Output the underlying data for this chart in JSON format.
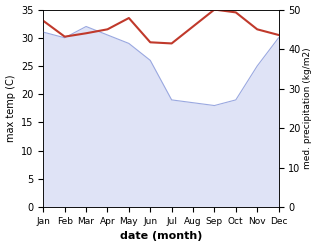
{
  "months": [
    "Jan",
    "Feb",
    "Mar",
    "Apr",
    "May",
    "Jun",
    "Jul",
    "Aug",
    "Sep",
    "Oct",
    "Nov",
    "Dec"
  ],
  "month_x": [
    0,
    1,
    2,
    3,
    4,
    5,
    6,
    7,
    8,
    9,
    10,
    11
  ],
  "temp_max": [
    33.0,
    30.2,
    30.8,
    31.5,
    33.5,
    29.2,
    29.0,
    32.0,
    35.0,
    34.5,
    31.5,
    30.5
  ],
  "precip": [
    31.0,
    30.0,
    32.0,
    30.5,
    29.0,
    26.0,
    19.0,
    18.5,
    18.0,
    19.0,
    25.0,
    30.0
  ],
  "temp_color": "#c0392b",
  "precip_fill_color": "#c5cdf0",
  "precip_line_color": "#9aa8e0",
  "temp_ylim": [
    0,
    35
  ],
  "precip_ylim": [
    0,
    50
  ],
  "left_yticks": [
    0,
    5,
    10,
    15,
    20,
    25,
    30,
    35
  ],
  "right_yticks": [
    0,
    10,
    20,
    30,
    40,
    50
  ],
  "xlabel": "date (month)",
  "ylabel_left": "max temp (C)",
  "ylabel_right": "med. precipitation (kg/m2)",
  "background_color": "#ffffff",
  "figsize": [
    3.18,
    2.47
  ],
  "dpi": 100
}
